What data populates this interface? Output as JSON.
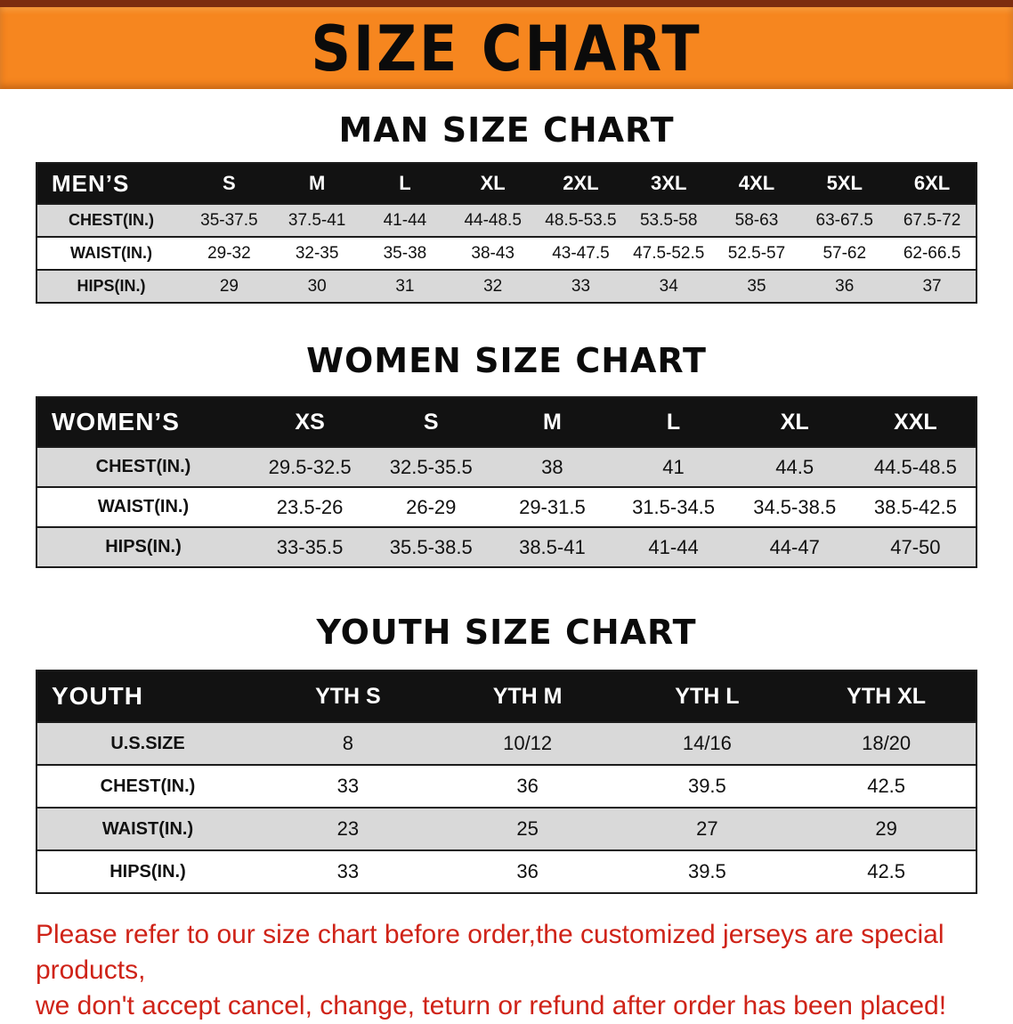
{
  "banner": {
    "title": "SIZE CHART"
  },
  "sections": [
    {
      "heading": "MAN SIZE CHART",
      "table": {
        "corner": "MEN’S",
        "columns": [
          "S",
          "M",
          "L",
          "XL",
          "2XL",
          "3XL",
          "4XL",
          "5XL",
          "6XL"
        ],
        "rows": [
          {
            "label": "CHEST(IN.)",
            "values": [
              "35-37.5",
              "37.5-41",
              "41-44",
              "44-48.5",
              "48.5-53.5",
              "53.5-58",
              "58-63",
              "63-67.5",
              "67.5-72"
            ]
          },
          {
            "label": "WAIST(IN.)",
            "values": [
              "29-32",
              "32-35",
              "35-38",
              "38-43",
              "43-47.5",
              "47.5-52.5",
              "52.5-57",
              "57-62",
              "62-66.5"
            ]
          },
          {
            "label": "HIPS(IN.)",
            "values": [
              "29",
              "30",
              "31",
              "32",
              "33",
              "34",
              "35",
              "36",
              "37"
            ]
          }
        ]
      }
    },
    {
      "heading": "WOMEN SIZE CHART",
      "table": {
        "corner": "WOMEN’S",
        "columns": [
          "XS",
          "S",
          "M",
          "L",
          "XL",
          "XXL"
        ],
        "rows": [
          {
            "label": "CHEST(IN.)",
            "values": [
              "29.5-32.5",
              "32.5-35.5",
              "38",
              "41",
              "44.5",
              "44.5-48.5"
            ]
          },
          {
            "label": "WAIST(IN.)",
            "values": [
              "23.5-26",
              "26-29",
              "29-31.5",
              "31.5-34.5",
              "34.5-38.5",
              "38.5-42.5"
            ]
          },
          {
            "label": "HIPS(IN.)",
            "values": [
              "33-35.5",
              "35.5-38.5",
              "38.5-41",
              "41-44",
              "44-47",
              "47-50"
            ]
          }
        ]
      }
    },
    {
      "heading": "YOUTH SIZE CHART",
      "table": {
        "corner": "YOUTH",
        "columns": [
          "YTH S",
          "YTH M",
          "YTH L",
          "YTH XL"
        ],
        "rows": [
          {
            "label": "U.S.SIZE",
            "values": [
              "8",
              "10/12",
              "14/16",
              "18/20"
            ]
          },
          {
            "label": "CHEST(IN.)",
            "values": [
              "33",
              "36",
              "39.5",
              "42.5"
            ]
          },
          {
            "label": "WAIST(IN.)",
            "values": [
              "23",
              "25",
              "27",
              "29"
            ]
          },
          {
            "label": "HIPS(IN.)",
            "values": [
              "33",
              "36",
              "39.5",
              "42.5"
            ]
          }
        ]
      }
    }
  ],
  "footer": {
    "line1": "Please refer to our size chart before order,the customized jerseys are special products,",
    "line2": "we don't accept cancel, change, teturn or refund after order has been placed!"
  },
  "colors": {
    "banner_orange": "#f6861f",
    "banner_border": "#7c2c0f",
    "header_black": "#121212",
    "row_gray": "#d9d9d9",
    "disclaimer_red": "#cf2318"
  }
}
